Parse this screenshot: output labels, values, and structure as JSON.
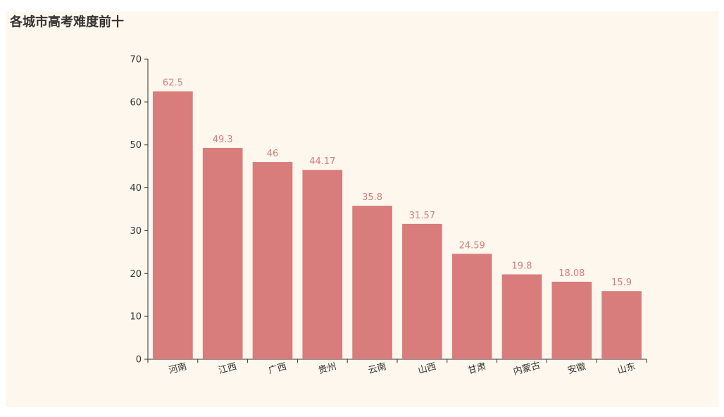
{
  "chart_data": {
    "type": "bar",
    "title": "各城市高考难度前十",
    "categories": [
      "河南",
      "江西",
      "广西",
      "贵州",
      "云南",
      "山西",
      "甘肃",
      "内蒙古",
      "安徽",
      "山东"
    ],
    "values": [
      62.5,
      49.3,
      46,
      44.17,
      35.8,
      31.57,
      24.59,
      19.8,
      18.08,
      15.9
    ],
    "value_labels": [
      "62.5",
      "49.3",
      "46",
      "44.17",
      "35.8",
      "31.57",
      "24.59",
      "19.8",
      "18.08",
      "15.9"
    ],
    "ylim": [
      0,
      70
    ],
    "yticks": [
      "0",
      "10",
      "20",
      "30",
      "40",
      "50",
      "60",
      "70"
    ],
    "grid": false,
    "legend": "none",
    "x_label_rotation_deg": -15
  },
  "colors": {
    "bar": "#d87c7c",
    "bar_label": "#d87c7c",
    "axis": "#333333",
    "background": "#fef7ed"
  }
}
